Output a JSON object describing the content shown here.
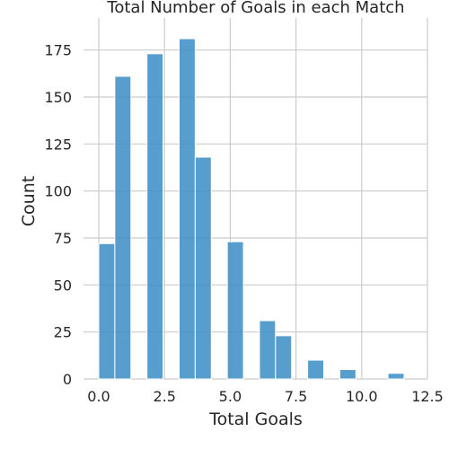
{
  "chart_data": {
    "type": "bar",
    "title": "Total Number of Goals in each Match",
    "xlabel": "Total Goals",
    "ylabel": "Count",
    "xlim": [
      -0.6,
      12.5
    ],
    "ylim": [
      0,
      190
    ],
    "xticks": [
      "0.0",
      "2.5",
      "5.0",
      "7.5",
      "10.0",
      "12.5"
    ],
    "xtick_values": [
      0,
      2.5,
      5,
      7.5,
      10,
      12.5
    ],
    "yticks": [
      "0",
      "25",
      "50",
      "75",
      "100",
      "125",
      "150",
      "175"
    ],
    "ytick_values": [
      0,
      25,
      50,
      75,
      100,
      125,
      150,
      175
    ],
    "bin_width": 0.611,
    "bins": [
      {
        "start": 0.0,
        "value": 72
      },
      {
        "start": 0.611,
        "value": 161
      },
      {
        "start": 1.833,
        "value": 173
      },
      {
        "start": 3.056,
        "value": 181
      },
      {
        "start": 3.667,
        "value": 118
      },
      {
        "start": 4.889,
        "value": 73
      },
      {
        "start": 6.111,
        "value": 31
      },
      {
        "start": 6.722,
        "value": 23
      },
      {
        "start": 7.944,
        "value": 10
      },
      {
        "start": 9.167,
        "value": 5
      },
      {
        "start": 10.389,
        "value": 0
      },
      {
        "start": 11.0,
        "value": 3
      }
    ],
    "grid": true,
    "color": "#3a8cc4"
  }
}
